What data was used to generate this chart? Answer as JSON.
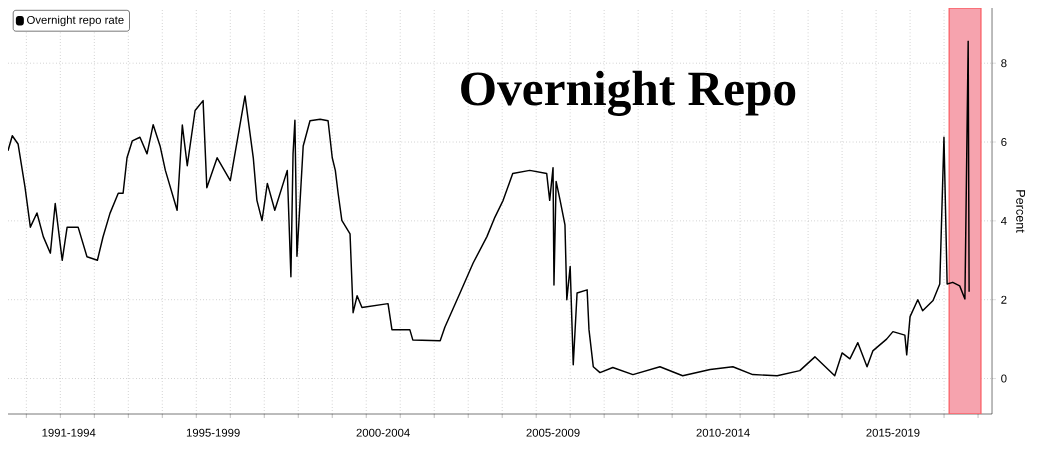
{
  "chart_data": {
    "type": "line",
    "title": "Overnight Repo",
    "ylabel": "Percent",
    "series": [
      {
        "name": "Overnight repo rate",
        "color": "#000000",
        "x": [
          "1991-06-18",
          "1991-08-03",
          "1991-10-04",
          "1991-12-18",
          "1992-02-13",
          "1992-04-24",
          "1992-07-01",
          "1992-09-15",
          "1992-11-06",
          "1993-01-21",
          "1993-03-15",
          "1993-07-11",
          "1993-10-14",
          "1994-02-03",
          "1994-04-04",
          "1994-06-18",
          "1994-09-15",
          "1994-11-06",
          "1994-12-18",
          "1995-02-13",
          "1995-05-06",
          "1995-07-21",
          "1995-09-25",
          "1995-12-08",
          "1996-02-03",
          "1996-06-08",
          "1996-08-03",
          "1996-09-25",
          "1996-12-18",
          "1997-03-15",
          "1997-04-24",
          "1997-08-13",
          "1998-01-01",
          "1998-06-08",
          "1998-09-05",
          "1998-10-14",
          "1998-12-08",
          "1999-02-03",
          "1999-04-24",
          "1999-09-05",
          "1999-10-14",
          "1999-11-06",
          "1999-11-26",
          "1999-12-18",
          "2000-02-23",
          "2000-05-06",
          "2000-08-23",
          "2000-11-16",
          "2001-01-01",
          "2001-02-03",
          "2001-03-05",
          "2001-04-14",
          "2001-07-11",
          "2001-08-13",
          "2001-09-25",
          "2001-11-16",
          "2002-08-23",
          "2002-10-04",
          "2003-04-14",
          "2003-05-16",
          "2004-03-05",
          "2004-04-24",
          "2004-10-04",
          "2005-02-23",
          "2005-07-21",
          "2005-10-14",
          "2006-01-11",
          "2006-04-24",
          "2006-10-24",
          "2007-04-24",
          "2007-05-26",
          "2007-07-01",
          "2007-07-11",
          "2007-08-03",
          "2007-09-15",
          "2007-11-06",
          "2007-11-26",
          "2008-01-01",
          "2008-02-03",
          "2008-03-15",
          "2008-07-01",
          "2008-07-21",
          "2008-09-05",
          "2008-11-16",
          "2009-04-04",
          "2009-11-06",
          "2010-08-23",
          "2011-04-24",
          "2012-02-13",
          "2012-10-14",
          "2013-05-16",
          "2014-02-03",
          "2014-10-04",
          "2015-03-15",
          "2015-10-14",
          "2016-01-01",
          "2016-03-25",
          "2016-06-18",
          "2016-09-25",
          "2016-11-26",
          "2017-04-24",
          "2017-07-01",
          "2017-11-06",
          "2017-11-26",
          "2018-01-01",
          "2018-03-25",
          "2018-05-16",
          "2018-09-05",
          "2018-11-16",
          "2018-12-31",
          "2019-02-03",
          "2019-04-04",
          "2019-06-18",
          "2019-08-13",
          "2019-09-17",
          "2019-09-27"
        ],
        "values": [
          5.78,
          6.16,
          5.95,
          4.85,
          3.84,
          4.2,
          3.6,
          3.18,
          4.44,
          3.0,
          3.84,
          3.84,
          3.09,
          3.0,
          3.59,
          4.19,
          4.7,
          4.7,
          5.6,
          6.03,
          6.12,
          5.7,
          6.44,
          5.9,
          5.28,
          4.27,
          6.43,
          5.4,
          6.8,
          7.05,
          4.84,
          5.6,
          5.02,
          7.17,
          5.6,
          4.52,
          4.01,
          4.95,
          4.27,
          5.28,
          2.58,
          5.7,
          6.55,
          3.1,
          5.9,
          6.54,
          6.58,
          6.54,
          5.6,
          5.28,
          4.7,
          4.01,
          3.67,
          1.67,
          2.1,
          1.8,
          1.9,
          1.24,
          1.24,
          0.98,
          0.96,
          1.3,
          2.17,
          2.93,
          3.6,
          4.09,
          4.52,
          5.2,
          5.28,
          5.2,
          4.52,
          5.35,
          2.37,
          5.0,
          4.52,
          3.9,
          2.0,
          2.84,
          0.35,
          2.17,
          2.25,
          1.24,
          0.3,
          0.15,
          0.28,
          0.1,
          0.3,
          0.07,
          0.23,
          0.3,
          0.1,
          0.07,
          0.2,
          0.55,
          0.07,
          0.65,
          0.5,
          0.91,
          0.3,
          0.7,
          1.0,
          1.19,
          1.1,
          0.6,
          1.57,
          2.0,
          1.72,
          1.98,
          2.4,
          6.12,
          2.4,
          2.44,
          2.35,
          2.02,
          8.56,
          2.2
        ]
      }
    ],
    "xlim": [
      "1991-06-18",
      "2020-05-30"
    ],
    "ylim": [
      -0.9,
      9.4
    ],
    "xticks": [
      {
        "value": "1992-01-01",
        "label": null
      },
      {
        "value": "1993-01-01",
        "label": null
      },
      {
        "value": "1994-01-01",
        "label": null
      },
      {
        "value": "1995-01-01",
        "label": null
      },
      {
        "value": "1996-01-01",
        "label": null
      },
      {
        "value": "1997-01-01",
        "label": null
      },
      {
        "value": "1998-01-01",
        "label": null
      },
      {
        "value": "1999-01-01",
        "label": null
      },
      {
        "value": "2000-01-01",
        "label": null
      },
      {
        "value": "2001-01-01",
        "label": null
      },
      {
        "value": "2002-01-01",
        "label": null
      },
      {
        "value": "2003-01-01",
        "label": null
      },
      {
        "value": "2004-01-01",
        "label": null
      },
      {
        "value": "2005-01-01",
        "label": null
      },
      {
        "value": "2006-01-01",
        "label": null
      },
      {
        "value": "2007-01-01",
        "label": null
      },
      {
        "value": "2008-01-01",
        "label": null
      },
      {
        "value": "2009-01-01",
        "label": null
      },
      {
        "value": "2010-01-01",
        "label": null
      },
      {
        "value": "2011-01-01",
        "label": null
      },
      {
        "value": "2012-01-01",
        "label": null
      },
      {
        "value": "2013-01-01",
        "label": null
      },
      {
        "value": "2014-01-01",
        "label": null
      },
      {
        "value": "2015-01-01",
        "label": null
      },
      {
        "value": "2016-01-01",
        "label": null
      },
      {
        "value": "2017-01-01",
        "label": null
      },
      {
        "value": "2018-01-01",
        "label": null
      },
      {
        "value": "2019-01-01",
        "label": null
      },
      {
        "value": "2020-01-01",
        "label": null
      },
      {
        "value": "1993-04-01",
        "label": "1991-1994"
      },
      {
        "value": "1997-07-01",
        "label": "1995-1999"
      },
      {
        "value": "2002-07-01",
        "label": "2000-2004"
      },
      {
        "value": "2007-07-01",
        "label": "2005-2009"
      },
      {
        "value": "2012-07-01",
        "label": "2010-2014"
      },
      {
        "value": "2017-07-01",
        "label": "2015-2019"
      }
    ],
    "yticks": [
      0,
      2,
      4,
      6,
      8
    ],
    "bands": [
      {
        "axis": "x",
        "from": "2019-02-25",
        "to": "2020-02-01",
        "color": "#f6a3ae"
      }
    ],
    "grid": true,
    "legend": "top left",
    "marker": "none",
    "line_style": "solid"
  }
}
